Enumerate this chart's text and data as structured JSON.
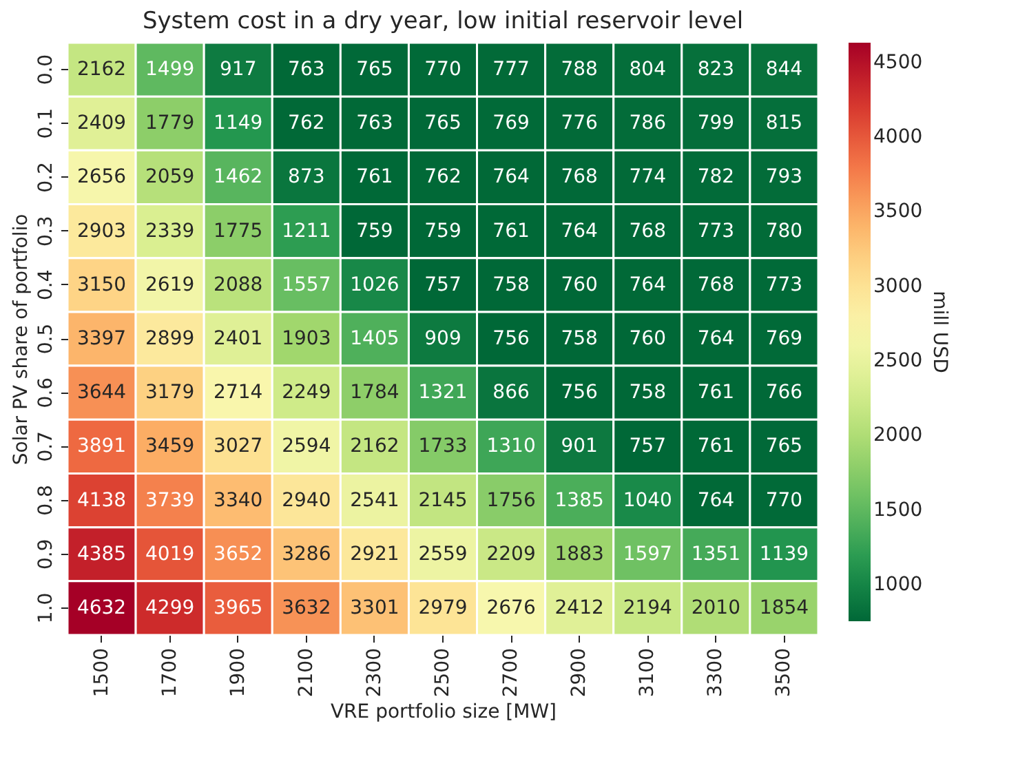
{
  "chart_data": {
    "type": "heatmap",
    "title": "System cost in a dry year, low initial reservoir level",
    "xlabel": "VRE portfolio size [MW]",
    "ylabel": "Solar PV share of portfolio",
    "clabel": "mill USD",
    "categories": [
      "1500",
      "1700",
      "1900",
      "2100",
      "2300",
      "2500",
      "2700",
      "2900",
      "3100",
      "3300",
      "3500"
    ],
    "y_categories": [
      "0.0",
      "0.1",
      "0.2",
      "0.3",
      "0.4",
      "0.5",
      "0.6",
      "0.7",
      "0.8",
      "0.9",
      "1.0"
    ],
    "cells": [
      [
        2162,
        1499,
        917,
        763,
        765,
        770,
        777,
        788,
        804,
        823,
        844
      ],
      [
        2409,
        1779,
        1149,
        762,
        763,
        765,
        769,
        776,
        786,
        799,
        815
      ],
      [
        2656,
        2059,
        1462,
        873,
        761,
        762,
        764,
        768,
        774,
        782,
        793
      ],
      [
        2903,
        2339,
        1775,
        1211,
        759,
        759,
        761,
        764,
        768,
        773,
        780
      ],
      [
        3150,
        2619,
        2088,
        1557,
        1026,
        757,
        758,
        760,
        764,
        768,
        773
      ],
      [
        3397,
        2899,
        2401,
        1903,
        1405,
        909,
        756,
        758,
        760,
        764,
        769
      ],
      [
        3644,
        3179,
        2714,
        2249,
        1784,
        1321,
        866,
        756,
        758,
        761,
        766
      ],
      [
        3891,
        3459,
        3027,
        2594,
        2162,
        1733,
        1310,
        901,
        757,
        761,
        765
      ],
      [
        4138,
        3739,
        3340,
        2940,
        2541,
        2145,
        1756,
        1385,
        1040,
        764,
        770
      ],
      [
        4385,
        4019,
        3652,
        3286,
        2921,
        2559,
        2209,
        1883,
        1597,
        1351,
        1139
      ],
      [
        4632,
        4299,
        3965,
        3632,
        3301,
        2979,
        2676,
        2412,
        2194,
        2010,
        1854
      ]
    ],
    "data_labels": true,
    "clim": [
      756,
      4632
    ],
    "cticks": [
      1000,
      1500,
      2000,
      2500,
      3000,
      3500,
      4000,
      4500
    ]
  }
}
